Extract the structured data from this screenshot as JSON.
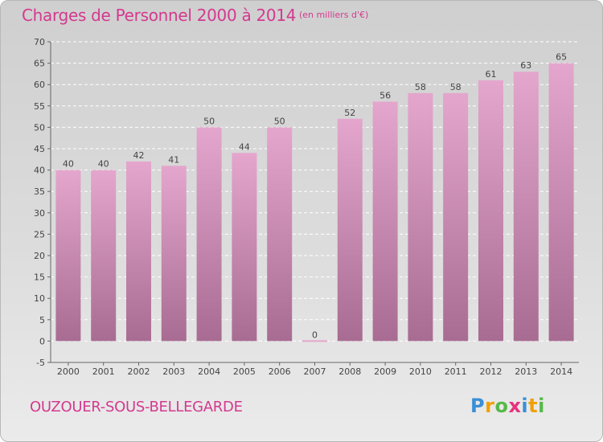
{
  "header": {
    "title": "Charges de Personnel 2000 à 2014",
    "subtitle": "(en milliers d'€)"
  },
  "footer": {
    "commune": "OUZOUER-SOUS-BELLEGARDE",
    "logo_letters": [
      {
        "char": "P",
        "color": "#3a8fd6"
      },
      {
        "char": "r",
        "color": "#f0a000"
      },
      {
        "char": "o",
        "color": "#56b948"
      },
      {
        "char": "x",
        "color": "#e8327c"
      },
      {
        "char": "i",
        "color": "#3a8fd6"
      },
      {
        "char": "t",
        "color": "#f0a000"
      },
      {
        "char": "i",
        "color": "#56b948"
      }
    ]
  },
  "colors": {
    "bar_top": "#e4a6cc",
    "bar_bottom": "#a86c92",
    "text_accent": "#d4398f"
  },
  "chart_data": {
    "type": "bar",
    "title": "Charges de Personnel 2000 à 2014",
    "subtitle": "(en milliers d'€)",
    "categories": [
      "2000",
      "2001",
      "2002",
      "2003",
      "2004",
      "2005",
      "2006",
      "2007",
      "2008",
      "2009",
      "2010",
      "2011",
      "2012",
      "2013",
      "2014"
    ],
    "values": [
      40,
      40,
      42,
      41,
      50,
      44,
      50,
      0,
      52,
      56,
      58,
      58,
      61,
      63,
      65
    ],
    "ylim": [
      -5,
      70
    ],
    "yticks": [
      -5,
      0,
      5,
      10,
      15,
      20,
      25,
      30,
      35,
      40,
      45,
      50,
      55,
      60,
      65,
      70
    ],
    "grid": true
  }
}
